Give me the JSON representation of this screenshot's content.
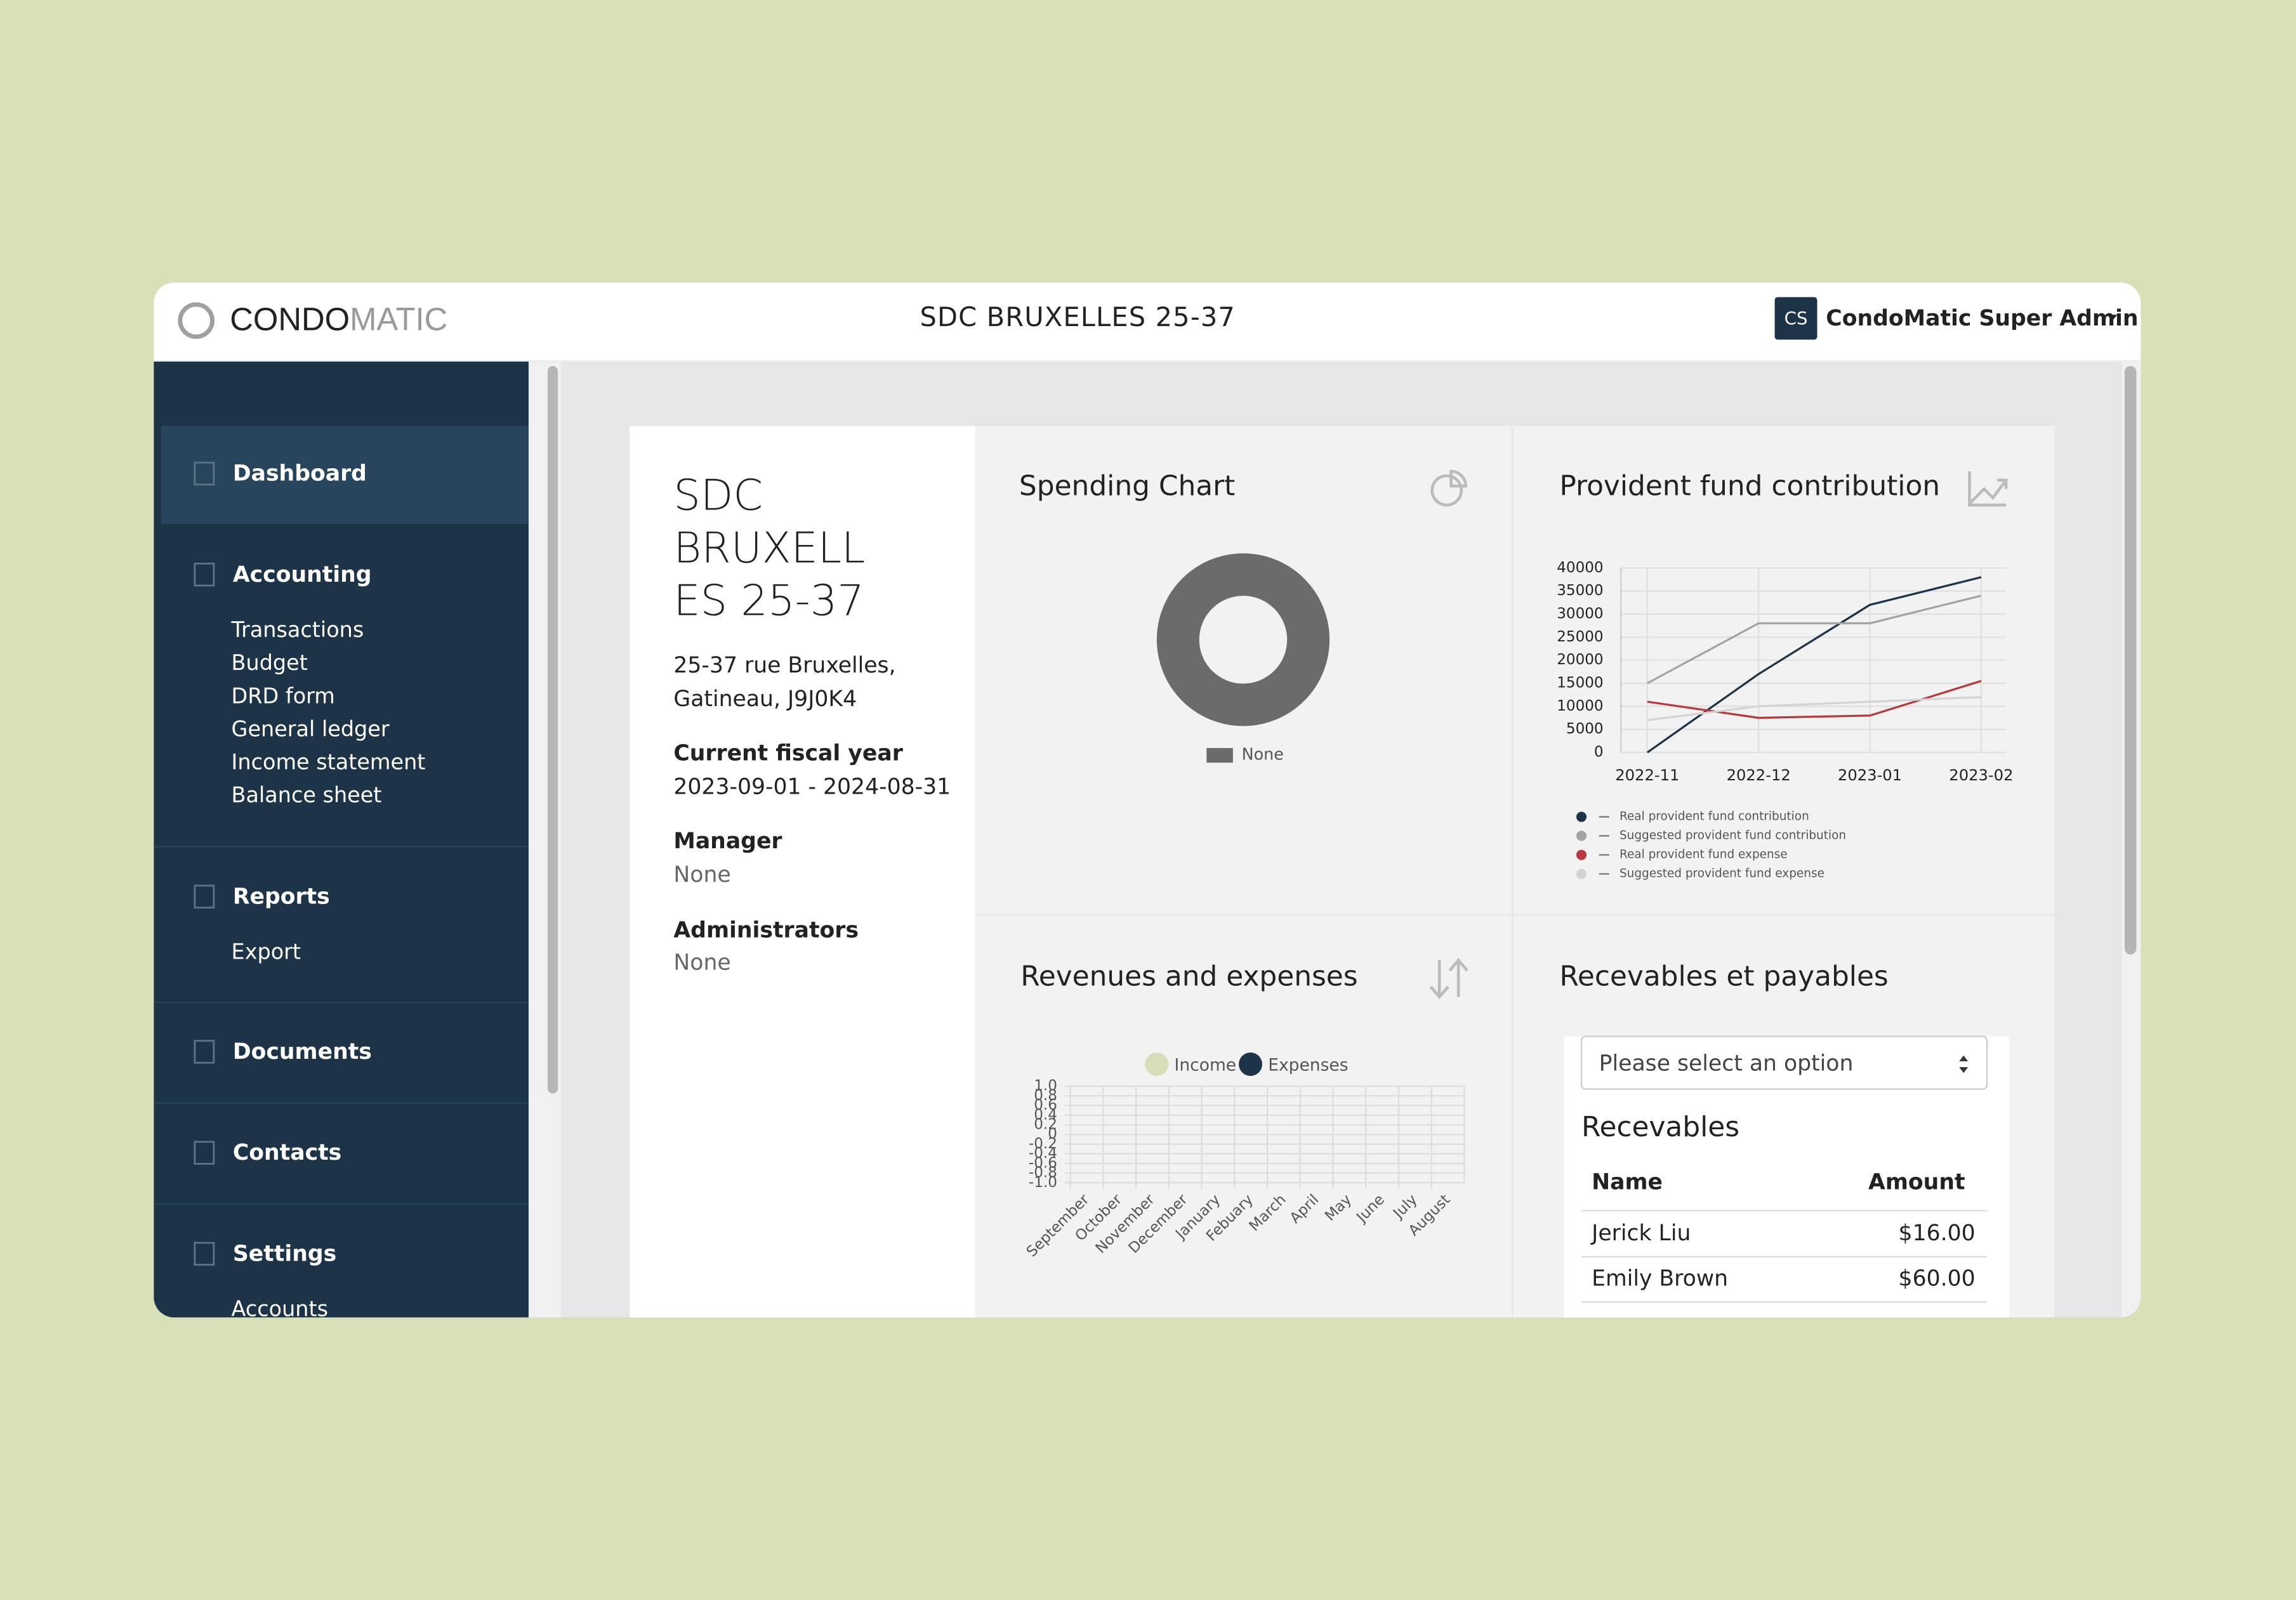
{
  "header": {
    "logo_left": "CONDO",
    "logo_right": "MATIC",
    "title": "SDC BRUXELLES 25-37",
    "avatar": "CS",
    "user": "CondoMatic Super Admin"
  },
  "sidebar": {
    "sections": [
      {
        "label": "Dashboard"
      },
      {
        "label": "Accounting",
        "items": [
          "Transactions",
          "Budget",
          "DRD form",
          "General ledger",
          "Income statement",
          "Balance sheet"
        ]
      },
      {
        "label": "Reports",
        "items": [
          "Export"
        ]
      },
      {
        "label": "Documents"
      },
      {
        "label": "Contacts"
      },
      {
        "label": "Settings",
        "items": [
          "Accounts"
        ]
      }
    ]
  },
  "info": {
    "name_lines": [
      "SDC",
      "BRUXELL",
      "ES 25-37"
    ],
    "address_lines": [
      "25-37 rue Bruxelles,",
      "Gatineau, J9J0K4"
    ],
    "fields": [
      {
        "label": "Current fiscal year",
        "value": "2023-09-01 - 2024-08-31"
      },
      {
        "label": "Manager",
        "value": "None"
      },
      {
        "label": "Administrators",
        "value": "None"
      }
    ]
  },
  "spending_chart": {
    "type": "pie",
    "title": "Spending Chart",
    "categories": [
      "None"
    ],
    "colors": [
      "#6b6b6b"
    ]
  },
  "provident_chart": {
    "type": "line",
    "title": "Provident fund contribution",
    "categories": [
      "2022-11",
      "2022-12",
      "2023-01",
      "2023-02"
    ],
    "ylim": [
      0,
      40000
    ],
    "yticks": [
      0,
      5000,
      10000,
      15000,
      20000,
      25000,
      30000,
      35000,
      40000
    ],
    "grid": true,
    "series": [
      {
        "name": "Real provident fund contribution",
        "color": "#1c3348",
        "values": [
          0,
          17000,
          32000,
          38000
        ]
      },
      {
        "name": "Suggested provident fund contribution",
        "color": "#a3a3a3",
        "values": [
          15000,
          28000,
          28000,
          34000
        ]
      },
      {
        "name": "Real provident fund expense",
        "color": "#b8393b",
        "values": [
          11000,
          7500,
          8000,
          15500
        ]
      },
      {
        "name": "Suggested provident fund expense",
        "color": "#d3d3d3",
        "values": [
          7000,
          10000,
          11000,
          12000
        ]
      }
    ]
  },
  "revenue_chart": {
    "type": "bar",
    "title": "Revenues and expenses",
    "categories": [
      "September",
      "October",
      "November",
      "December",
      "January",
      "Febuary",
      "March",
      "April",
      "May",
      "June",
      "July",
      "August"
    ],
    "ylim": [
      -1,
      1
    ],
    "yticks": [
      {
        "value": 1,
        "label": "1.0"
      },
      0.8,
      0.6,
      0.4,
      0.2,
      0,
      -0.2,
      -0.4,
      -0.6,
      -0.8,
      {
        "value": -1,
        "label": "-1.0"
      }
    ],
    "grid": true,
    "series": [
      {
        "name": "Income",
        "color": "#d5dfb7"
      },
      {
        "name": "Expenses",
        "color": "#1c3348"
      }
    ]
  },
  "recevables": {
    "title": "Recevables et payables",
    "select_placeholder": "Please select an option",
    "subtitle": "Recevables",
    "columns": [
      "Name",
      "Amount"
    ],
    "rows": [
      [
        "Jerick Liu",
        "$16.00"
      ],
      [
        "Emily Brown",
        "$60.00"
      ]
    ]
  }
}
